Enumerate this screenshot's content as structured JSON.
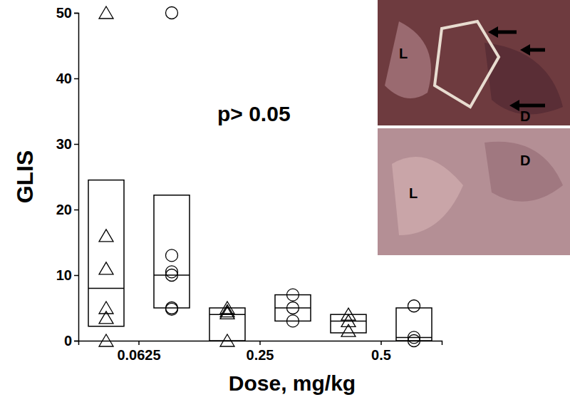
{
  "chart_data": {
    "type": "box",
    "xlabel": "Dose, mg/kg",
    "ylabel": "GLIS",
    "annotations": [
      "p> 0.05",
      "L",
      "D",
      "L",
      "D"
    ],
    "categories": [
      "0.0625",
      "0.25",
      "0.5"
    ],
    "ylim": [
      0,
      50
    ],
    "yticks": [
      0,
      10,
      20,
      30,
      40,
      50
    ],
    "series": [
      {
        "marker": "triangle",
        "color": "#000000",
        "values": [
          [
            50,
            16,
            11,
            5,
            3.5,
            0
          ],
          [
            5,
            4.5,
            4.2,
            0
          ],
          [
            4,
            3,
            1.5
          ]
        ],
        "boxes": [
          {
            "q1": 2.2,
            "median": 8,
            "q3": 24.5
          },
          {
            "q1": 0,
            "median": 4,
            "q3": 5
          },
          {
            "q1": 1.2,
            "median": 3,
            "q3": 4
          }
        ]
      },
      {
        "marker": "circle",
        "color": "#000000",
        "values": [
          [
            50,
            13,
            10.5,
            10,
            5,
            4.8
          ],
          [
            7,
            5,
            3
          ],
          [
            5.3,
            0.5,
            0
          ]
        ],
        "boxes": [
          {
            "q1": 5,
            "median": 10,
            "q3": 22.2
          },
          {
            "q1": 3,
            "median": 5,
            "q3": 7
          },
          {
            "q1": 0,
            "median": 0.5,
            "q3": 5
          }
        ]
      }
    ]
  }
}
